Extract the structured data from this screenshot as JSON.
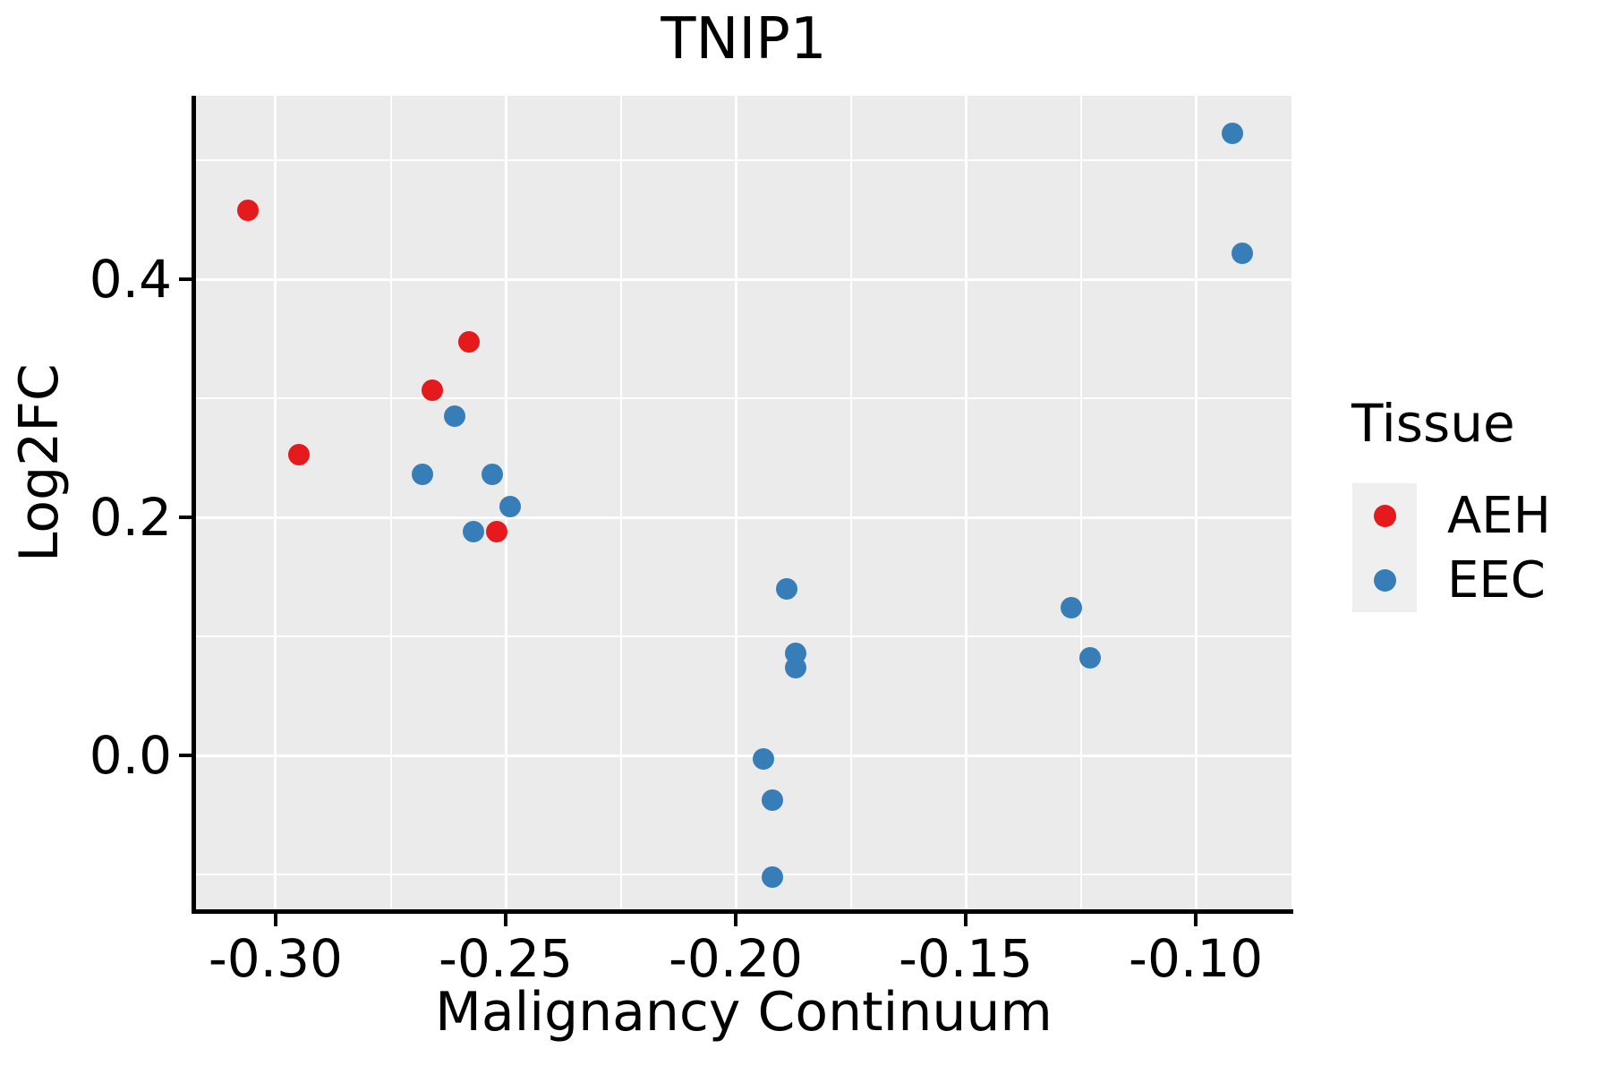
{
  "chart_data": {
    "type": "scatter",
    "title": "TNIP1",
    "xlabel": "Malignancy Continuum",
    "ylabel": "Log2FC",
    "xlim": [
      -0.3173,
      -0.0792
    ],
    "ylim": [
      -0.1306,
      0.5544
    ],
    "x_ticks": [
      -0.3,
      -0.25,
      -0.2,
      -0.15,
      -0.1
    ],
    "x_tick_labels": [
      "-0.30",
      "-0.25",
      "-0.20",
      "-0.15",
      "-0.10"
    ],
    "y_ticks": [
      0.0,
      0.2,
      0.4
    ],
    "y_tick_labels": [
      "0.0",
      "0.2",
      "0.4"
    ],
    "grid": {
      "major": true,
      "minor": true,
      "color": "#FFFFFF"
    },
    "panel_background": "#EBEBEB",
    "legend": {
      "title": "Tissue",
      "position": "right",
      "entries": [
        {
          "label": "AEH",
          "color": "#E41A1C"
        },
        {
          "label": "EEC",
          "color": "#377EB8"
        }
      ]
    },
    "series": [
      {
        "name": "AEH",
        "color": "#E41A1C",
        "points": [
          [
            -0.306,
            0.458
          ],
          [
            -0.295,
            0.253
          ],
          [
            -0.266,
            0.307
          ],
          [
            -0.258,
            0.348
          ],
          [
            -0.252,
            0.188
          ]
        ]
      },
      {
        "name": "EEC",
        "color": "#377EB8",
        "points": [
          [
            -0.268,
            0.236
          ],
          [
            -0.261,
            0.285
          ],
          [
            -0.257,
            0.188
          ],
          [
            -0.253,
            0.236
          ],
          [
            -0.249,
            0.209
          ],
          [
            -0.194,
            -0.003
          ],
          [
            -0.192,
            -0.037
          ],
          [
            -0.192,
            -0.102
          ],
          [
            -0.189,
            0.14
          ],
          [
            -0.187,
            0.086
          ],
          [
            -0.187,
            0.074
          ],
          [
            -0.127,
            0.124
          ],
          [
            -0.123,
            0.082
          ],
          [
            -0.092,
            0.523
          ],
          [
            -0.09,
            0.422
          ]
        ]
      }
    ]
  }
}
